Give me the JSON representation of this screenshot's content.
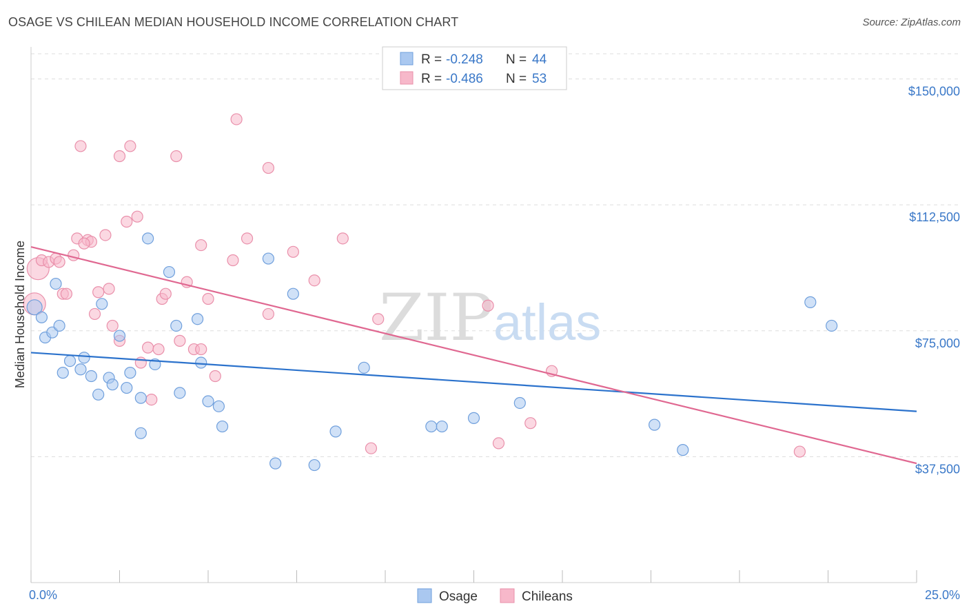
{
  "title": "OSAGE VS CHILEAN MEDIAN HOUSEHOLD INCOME CORRELATION CHART",
  "source": "Source: ZipAtlas.com",
  "watermark": {
    "zip": "ZIP",
    "atlas": "atlas"
  },
  "colors": {
    "osage_fill": "#aac8f0",
    "osage_stroke": "#6f9fdc",
    "osage_line": "#2b72cc",
    "chilean_fill": "#f7b8ca",
    "chilean_stroke": "#e98faa",
    "chilean_line": "#e06891",
    "grid": "#dddddd",
    "label": "#3a78c8"
  },
  "legend": {
    "rows": [
      {
        "r_label": "R = ",
        "r_value": "-0.248",
        "n_label": "N = ",
        "n_value": "44"
      },
      {
        "r_label": "R = ",
        "r_value": "-0.486",
        "n_label": "N = ",
        "n_value": "53"
      }
    ]
  },
  "chart_data": {
    "type": "scatter",
    "ylabel": "Median Household Income",
    "x_tick_labels": [
      "0.0%",
      "25.0%"
    ],
    "y_tick_labels": [
      "$37,500",
      "$75,000",
      "$112,500",
      "$150,000"
    ],
    "xlim": [
      0,
      25
    ],
    "ylim": [
      0,
      157500
    ],
    "y_ticks": [
      37500,
      75000,
      112500,
      150000
    ],
    "grid": true,
    "legend_position": "bottom",
    "series": [
      {
        "name": "Osage",
        "trend": {
          "x": [
            0,
            25
          ],
          "y": [
            68500,
            51000
          ]
        },
        "points": [
          [
            0.1,
            82000
          ],
          [
            0.3,
            79000
          ],
          [
            0.4,
            73000
          ],
          [
            0.6,
            74500
          ],
          [
            0.7,
            89000
          ],
          [
            0.8,
            76500
          ],
          [
            0.9,
            62500
          ],
          [
            1.1,
            66000
          ],
          [
            1.4,
            63500
          ],
          [
            1.5,
            67000
          ],
          [
            1.7,
            61500
          ],
          [
            1.9,
            56000
          ],
          [
            2.0,
            83000
          ],
          [
            2.2,
            61000
          ],
          [
            2.3,
            59000
          ],
          [
            2.5,
            73500
          ],
          [
            2.7,
            58000
          ],
          [
            2.8,
            62500
          ],
          [
            3.1,
            55000
          ],
          [
            3.1,
            44500
          ],
          [
            3.3,
            102500
          ],
          [
            3.5,
            65000
          ],
          [
            3.9,
            92500
          ],
          [
            4.1,
            76500
          ],
          [
            4.2,
            56500
          ],
          [
            4.7,
            78500
          ],
          [
            4.8,
            65500
          ],
          [
            5.0,
            54000
          ],
          [
            5.3,
            52500
          ],
          [
            5.4,
            46500
          ],
          [
            6.7,
            96500
          ],
          [
            6.9,
            35500
          ],
          [
            7.4,
            86000
          ],
          [
            8.0,
            35000
          ],
          [
            8.6,
            45000
          ],
          [
            9.4,
            64000
          ],
          [
            11.3,
            46500
          ],
          [
            11.6,
            46500
          ],
          [
            12.5,
            49000
          ],
          [
            13.8,
            53500
          ],
          [
            17.6,
            47000
          ],
          [
            18.4,
            39500
          ],
          [
            22.0,
            83500
          ],
          [
            22.6,
            76500
          ]
        ]
      },
      {
        "name": "Chileans",
        "trend": {
          "x": [
            0,
            25
          ],
          "y": [
            100000,
            35500
          ]
        },
        "points": [
          [
            0.1,
            83000
          ],
          [
            0.2,
            93500
          ],
          [
            0.3,
            96000
          ],
          [
            0.5,
            95500
          ],
          [
            0.7,
            96500
          ],
          [
            0.8,
            95500
          ],
          [
            0.9,
            86000
          ],
          [
            1.0,
            86000
          ],
          [
            1.2,
            97500
          ],
          [
            1.3,
            102500
          ],
          [
            1.4,
            130000
          ],
          [
            1.6,
            102000
          ],
          [
            1.7,
            101500
          ],
          [
            1.8,
            80000
          ],
          [
            1.9,
            86500
          ],
          [
            2.1,
            103500
          ],
          [
            2.2,
            87500
          ],
          [
            2.3,
            76500
          ],
          [
            2.5,
            72000
          ],
          [
            2.5,
            127000
          ],
          [
            2.7,
            107500
          ],
          [
            2.8,
            130000
          ],
          [
            3.0,
            109000
          ],
          [
            3.1,
            65500
          ],
          [
            3.3,
            70000
          ],
          [
            3.4,
            54500
          ],
          [
            3.6,
            69500
          ],
          [
            3.7,
            84500
          ],
          [
            3.8,
            86000
          ],
          [
            4.1,
            127000
          ],
          [
            4.2,
            72000
          ],
          [
            4.4,
            89500
          ],
          [
            4.6,
            69500
          ],
          [
            4.8,
            69500
          ],
          [
            4.8,
            100500
          ],
          [
            5.0,
            84500
          ],
          [
            5.2,
            61500
          ],
          [
            5.8,
            138000
          ],
          [
            5.7,
            96000
          ],
          [
            6.1,
            102500
          ],
          [
            6.7,
            80000
          ],
          [
            6.7,
            123500
          ],
          [
            7.4,
            98500
          ],
          [
            8.0,
            90000
          ],
          [
            8.8,
            102500
          ],
          [
            9.6,
            40000
          ],
          [
            9.8,
            78500
          ],
          [
            12.9,
            82500
          ],
          [
            13.2,
            41500
          ],
          [
            14.1,
            47500
          ],
          [
            14.7,
            63000
          ],
          [
            21.7,
            39000
          ],
          [
            1.5,
            101000
          ]
        ]
      }
    ]
  }
}
